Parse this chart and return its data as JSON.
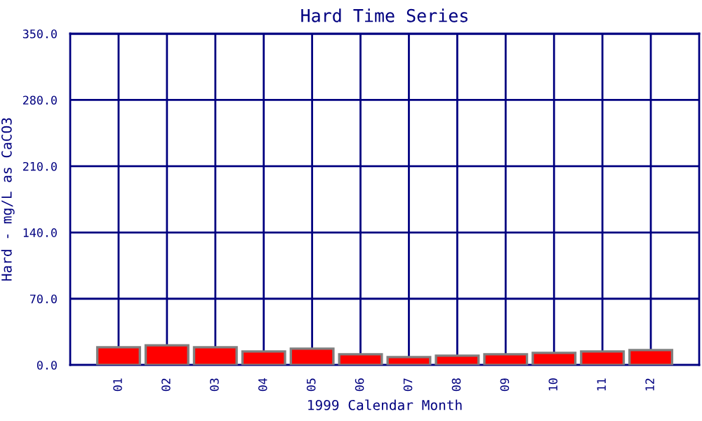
{
  "chart_data": {
    "type": "bar",
    "title": "Hard Time Series",
    "xlabel": "1999 Calendar Month",
    "ylabel": "Hard - mg/L as CaCO3",
    "categories": [
      "01",
      "02",
      "03",
      "04",
      "05",
      "06",
      "07",
      "08",
      "09",
      "10",
      "11",
      "12"
    ],
    "values": [
      18.8,
      20.8,
      18.8,
      14.3,
      17.3,
      11.4,
      8.4,
      9.9,
      11.4,
      12.9,
      14.3,
      15.8
    ],
    "color": "#ff0000",
    "ylim": [
      0,
      350
    ],
    "yticks": [
      {
        "value": 0,
        "label": "0.0"
      },
      {
        "value": 70,
        "label": "70.0"
      },
      {
        "value": 140,
        "label": "140.0"
      },
      {
        "value": 210,
        "label": "210.0"
      },
      {
        "value": 280,
        "label": "280.0"
      },
      {
        "value": 350,
        "label": "350.0"
      }
    ],
    "grid": true
  }
}
